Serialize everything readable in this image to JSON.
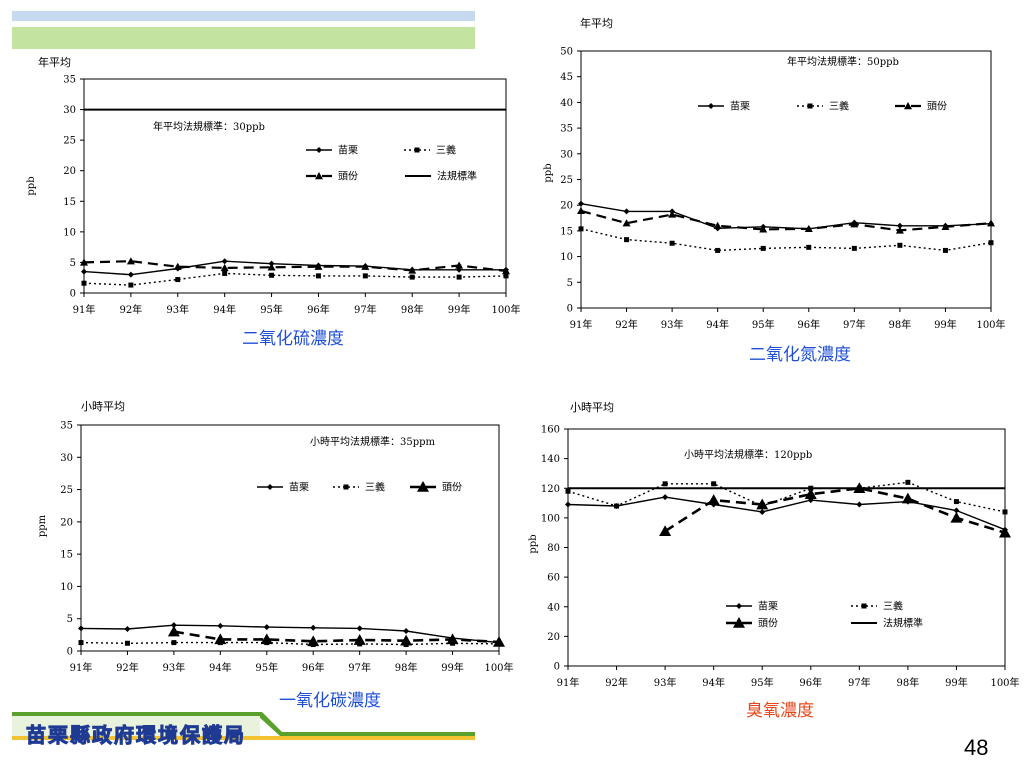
{
  "header_colors": {
    "blue_bar": "#c5d9f1",
    "green_bar": "#c3e3a0"
  },
  "footer": {
    "org_name": "苗栗縣政府環境保護局",
    "page_number": "48"
  },
  "chart_data": [
    {
      "type": "line",
      "pollutant_title": "二氧化硫濃度",
      "title_color": "#1f4fd8",
      "corner_label": "年平均",
      "ylabel": "ppb",
      "ylim": [
        0,
        35
      ],
      "yticks": [
        0,
        5,
        10,
        15,
        20,
        25,
        30,
        35
      ],
      "x": [
        "91年",
        "92年",
        "93年",
        "94年",
        "95年",
        "96年",
        "97年",
        "98年",
        "99年",
        "100年"
      ],
      "standard_text": "年平均法規標準：30ppb",
      "standard_value": 30,
      "standard_label": "法規標準",
      "legend_order": [
        0,
        1,
        2,
        3
      ],
      "series": [
        {
          "name": "苗栗",
          "values": [
            3.5,
            3.0,
            4.0,
            5.2,
            4.8,
            4.5,
            4.4,
            3.8,
            3.8,
            3.8
          ]
        },
        {
          "name": "三義",
          "values": [
            1.6,
            1.3,
            2.2,
            3.2,
            2.9,
            2.8,
            2.8,
            2.6,
            2.6,
            2.8
          ]
        },
        {
          "name": "頭份",
          "values": [
            5.0,
            5.2,
            4.3,
            4.1,
            4.2,
            4.3,
            4.3,
            3.7,
            4.5,
            3.6
          ]
        }
      ]
    },
    {
      "type": "line",
      "pollutant_title": "二氧化氮濃度",
      "title_color": "#1f4fd8",
      "corner_label": "年平均",
      "ylabel": "ppb",
      "ylim": [
        0,
        50
      ],
      "yticks": [
        0,
        5,
        10,
        15,
        20,
        25,
        30,
        35,
        40,
        45,
        50
      ],
      "x": [
        "91年",
        "92年",
        "93年",
        "94年",
        "95年",
        "96年",
        "97年",
        "98年",
        "99年",
        "100年"
      ],
      "standard_text": "年平均法規標準：50ppb",
      "standard_value": null,
      "standard_label": "",
      "legend_order": [
        0,
        1,
        2
      ],
      "series": [
        {
          "name": "苗栗",
          "values": [
            20.3,
            18.8,
            18.8,
            15.5,
            15.8,
            15.4,
            16.6,
            16.0,
            16.0,
            16.4
          ]
        },
        {
          "name": "三義",
          "values": [
            15.4,
            13.3,
            12.6,
            11.2,
            11.6,
            11.8,
            11.6,
            12.2,
            11.2,
            12.7
          ]
        },
        {
          "name": "頭份",
          "values": [
            18.9,
            16.5,
            18.2,
            16.0,
            15.3,
            15.4,
            16.3,
            15.1,
            15.8,
            16.5
          ]
        }
      ]
    },
    {
      "type": "line",
      "pollutant_title": "一氧化碳濃度",
      "title_color": "#1f4fd8",
      "corner_label": "小時平均",
      "ylabel": "ppm",
      "ylim": [
        0,
        35
      ],
      "yticks": [
        0,
        5,
        10,
        15,
        20,
        25,
        30,
        35
      ],
      "x": [
        "91年",
        "92年",
        "93年",
        "94年",
        "95年",
        "96年",
        "97年",
        "98年",
        "99年",
        "100年"
      ],
      "standard_text": "小時平均法規標準：35ppm",
      "standard_value": null,
      "standard_label": "",
      "legend_order": [
        0,
        1,
        2
      ],
      "series": [
        {
          "name": "苗栗",
          "values": [
            3.5,
            3.4,
            4.0,
            3.9,
            3.7,
            3.6,
            3.5,
            3.1,
            2.0,
            1.3
          ]
        },
        {
          "name": "三義",
          "values": [
            1.3,
            1.2,
            1.3,
            1.3,
            1.3,
            1.0,
            1.1,
            1.0,
            1.2,
            1.1
          ]
        },
        {
          "name": "頭份",
          "values": [
            null,
            null,
            3.0,
            1.8,
            1.8,
            1.5,
            1.7,
            1.6,
            1.8,
            1.4
          ]
        }
      ]
    },
    {
      "type": "line",
      "pollutant_title": "臭氧濃度",
      "title_color": "#e8481c",
      "corner_label": "小時平均",
      "ylabel": "ppb",
      "ylim": [
        0,
        160
      ],
      "yticks": [
        0,
        20,
        40,
        60,
        80,
        100,
        120,
        140,
        160
      ],
      "x": [
        "91年",
        "92年",
        "93年",
        "94年",
        "95年",
        "96年",
        "97年",
        "98年",
        "99年",
        "100年"
      ],
      "standard_text": "小時平均法規標準：120ppb",
      "standard_value": 120,
      "standard_label": "法規標準",
      "legend_order": [
        0,
        1,
        2,
        3
      ],
      "series": [
        {
          "name": "苗栗",
          "values": [
            109,
            108,
            114,
            109,
            104,
            112,
            109,
            111,
            105,
            92
          ]
        },
        {
          "name": "三義",
          "values": [
            118,
            108,
            123,
            123,
            108,
            120,
            120,
            124,
            111,
            104
          ]
        },
        {
          "name": "頭份",
          "values": [
            null,
            null,
            91,
            112,
            109,
            116,
            120,
            113,
            100,
            90
          ]
        }
      ]
    }
  ]
}
